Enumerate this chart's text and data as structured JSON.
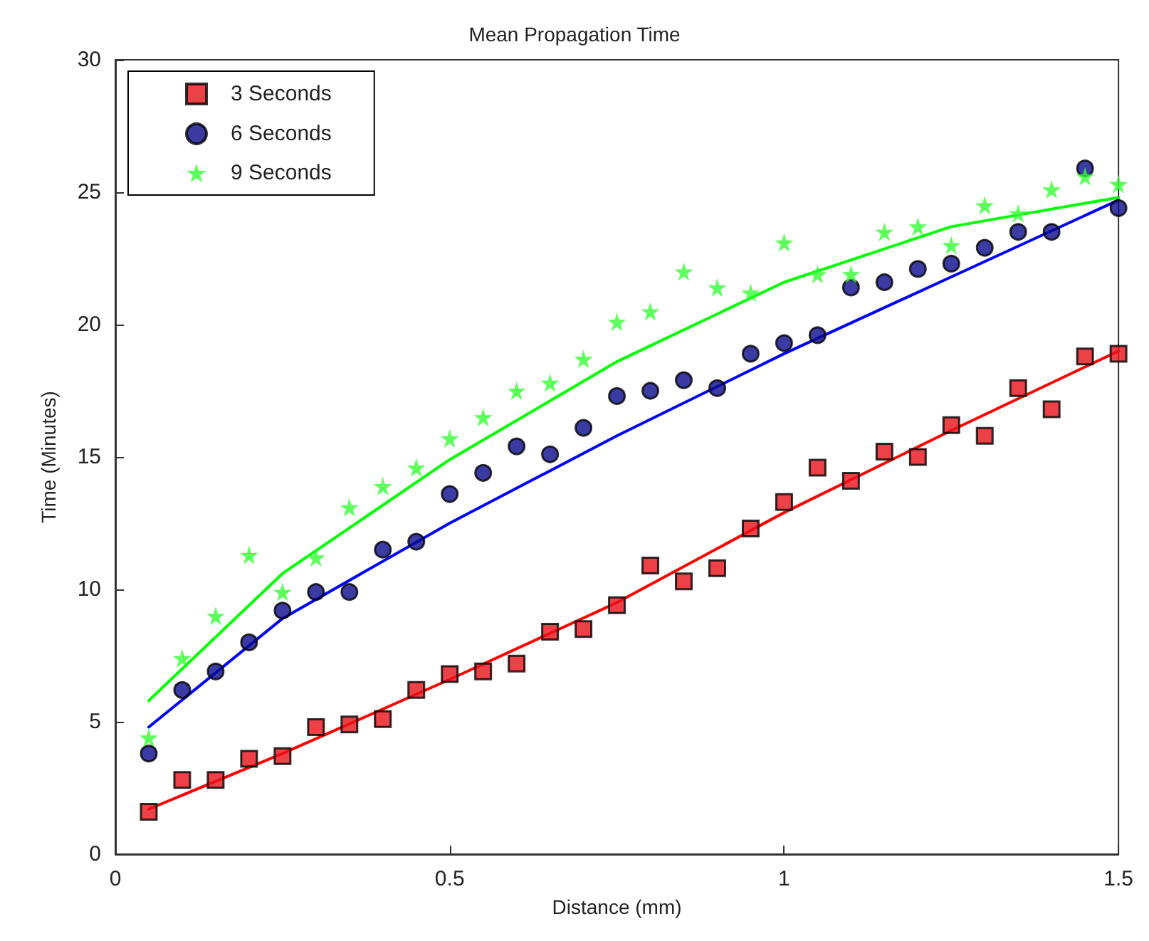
{
  "chart_data": {
    "type": "scatter",
    "title": "Mean Propagation Time",
    "xlabel": "Distance (mm)",
    "ylabel": "Time (Minutes)",
    "x": [
      0.05,
      0.1,
      0.15,
      0.2,
      0.25,
      0.3,
      0.35,
      0.4,
      0.45,
      0.5,
      0.55,
      0.6,
      0.65,
      0.7,
      0.75,
      0.8,
      0.85,
      0.9,
      0.95,
      1.0,
      1.05,
      1.1,
      1.15,
      1.2,
      1.25,
      1.3,
      1.35,
      1.4,
      1.45,
      1.5
    ],
    "series": [
      {
        "name": "3 Seconds",
        "marker": "square",
        "color": "#e8111a",
        "values": [
          1.6,
          2.8,
          2.8,
          3.6,
          3.7,
          4.8,
          4.9,
          5.1,
          6.2,
          6.8,
          6.9,
          7.2,
          8.4,
          8.5,
          9.4,
          10.9,
          10.3,
          10.8,
          12.3,
          13.3,
          14.6,
          14.1,
          15.2,
          15.0,
          16.2,
          15.8,
          17.6,
          16.8,
          18.8,
          18.9
        ]
      },
      {
        "name": "6 Seconds",
        "marker": "circle",
        "color": "#0a0a8c",
        "values": [
          3.8,
          6.2,
          6.9,
          8.0,
          9.2,
          9.9,
          9.9,
          11.5,
          11.8,
          13.6,
          14.4,
          15.4,
          15.1,
          16.1,
          17.3,
          17.5,
          17.9,
          17.6,
          18.9,
          19.3,
          19.6,
          21.4,
          21.6,
          22.1,
          22.3,
          22.9,
          23.5,
          23.5,
          25.9,
          24.4
        ]
      },
      {
        "name": "9 Seconds",
        "marker": "star",
        "color": "#33ff33",
        "values": [
          4.4,
          7.4,
          9.0,
          11.3,
          9.9,
          11.2,
          13.1,
          13.9,
          14.6,
          15.7,
          16.5,
          17.5,
          17.8,
          18.7,
          20.1,
          20.5,
          22.0,
          21.4,
          21.2,
          23.1,
          21.9,
          21.9,
          23.5,
          23.7,
          23.0,
          24.5,
          24.2,
          25.1,
          25.6,
          25.3
        ]
      },
      {
        "type": "line",
        "marker": "none",
        "color": "#ff0000",
        "x": [
          0.05,
          0.25,
          0.5,
          0.75,
          1.0,
          1.25,
          1.5
        ],
        "values": [
          1.7,
          3.8,
          6.6,
          9.5,
          12.9,
          16.0,
          19.0
        ]
      },
      {
        "type": "line",
        "marker": "none",
        "color": "#0000ff",
        "x": [
          0.05,
          0.25,
          0.5,
          0.75,
          1.0,
          1.25,
          1.5
        ],
        "values": [
          4.8,
          8.9,
          12.5,
          15.8,
          18.9,
          21.8,
          24.7
        ]
      },
      {
        "type": "line",
        "marker": "none",
        "color": "#00ff00",
        "x": [
          0.05,
          0.25,
          0.5,
          0.75,
          1.0,
          1.25,
          1.5
        ],
        "values": [
          5.8,
          10.6,
          14.9,
          18.6,
          21.6,
          23.7,
          24.8
        ]
      }
    ],
    "xlim": [
      0,
      1.5
    ],
    "xticks": [
      0,
      0.5,
      1,
      1.5
    ],
    "ylim": [
      0,
      30
    ],
    "yticks": [
      0,
      5,
      10,
      15,
      20,
      25,
      30
    ],
    "grid": false,
    "legend": "top left"
  }
}
